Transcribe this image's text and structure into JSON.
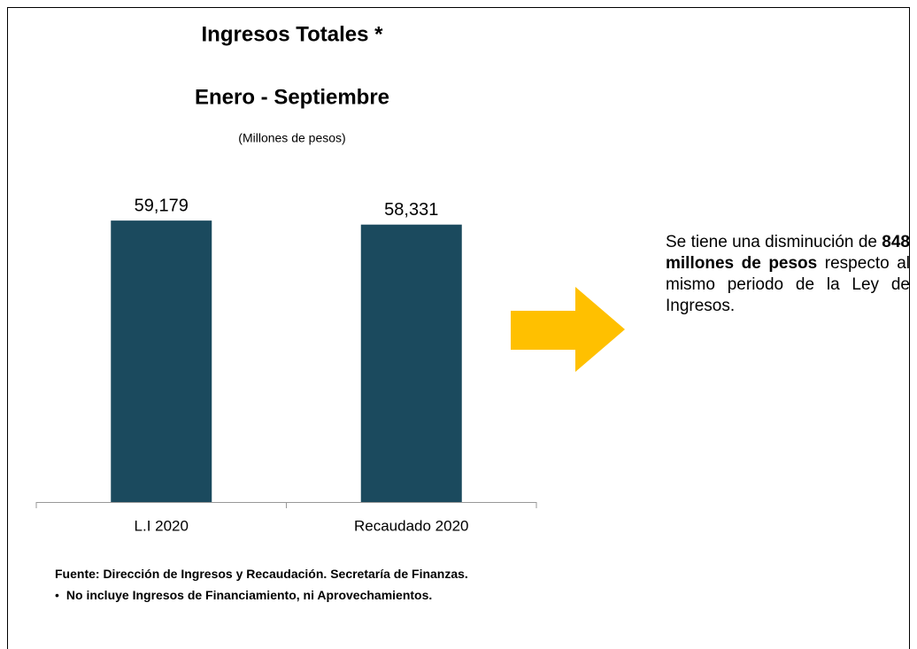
{
  "chart_data": {
    "type": "bar",
    "title": "Ingresos Totales *",
    "subtitle": "Enero - Septiembre",
    "unit_label": "(Millones de pesos)",
    "categories": [
      "L.I 2020",
      "Recaudado 2020"
    ],
    "values": [
      59179,
      58331
    ],
    "value_labels": [
      "59,179",
      "58,331"
    ],
    "color": "#1b4a5e",
    "ylim": [
      0,
      70000
    ],
    "annotation": {
      "before": "Se tiene una disminución de ",
      "bold": "848 millones de pesos",
      "after": " respecto al mismo periodo de la Ley de Ingresos."
    },
    "source": "Fuente: Dirección de Ingresos y Recaudación. Secretaría de Finanzas.",
    "notes": [
      "No incluye Ingresos de Financiamiento, ni Aprovechamientos."
    ]
  }
}
